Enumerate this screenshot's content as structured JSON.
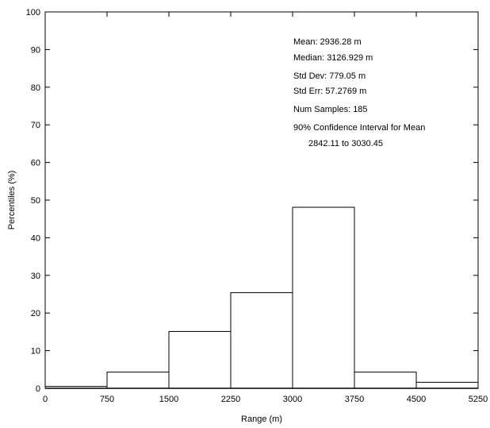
{
  "chart_data": {
    "type": "bar",
    "title": "",
    "xlabel": "Range (m)",
    "ylabel": "Percentiles (%)",
    "xlim": [
      0,
      5250
    ],
    "ylim": [
      0,
      100
    ],
    "x_ticks": [
      "0",
      "750",
      "1500",
      "2250",
      "3000",
      "3750",
      "4500",
      "5250"
    ],
    "y_ticks": [
      "0",
      "10",
      "20",
      "30",
      "40",
      "50",
      "60",
      "70",
      "80",
      "90",
      "100"
    ],
    "bins": [
      {
        "start": 0,
        "end": 750,
        "value": 0.5
      },
      {
        "start": 750,
        "end": 1500,
        "value": 4.3
      },
      {
        "start": 1500,
        "end": 2250,
        "value": 15.1
      },
      {
        "start": 2250,
        "end": 3000,
        "value": 25.4
      },
      {
        "start": 3000,
        "end": 3750,
        "value": 48.1
      },
      {
        "start": 3750,
        "end": 4500,
        "value": 4.3
      },
      {
        "start": 4500,
        "end": 5250,
        "value": 1.6
      }
    ],
    "grid": false,
    "bar_fill": "#ffffff",
    "bar_stroke": "#000000"
  },
  "stats": {
    "mean": "Mean: 2936.28 m",
    "median": "Median: 3126.929 m",
    "std_dev": "Std Dev: 779.05 m",
    "std_err": "Std Err: 57.2769 m",
    "num_samples": "Num Samples: 185",
    "ci_label": "90% Confidence Interval for Mean",
    "ci_range": "2842.11 to 3030.45"
  }
}
